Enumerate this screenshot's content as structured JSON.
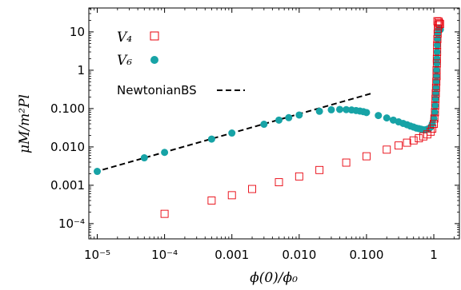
{
  "chart_data": {
    "type": "scatter",
    "xlabel": "ϕ(0)/ϕ₀",
    "ylabel": "μM/m²Pl",
    "xscale": "log",
    "yscale": "log",
    "xlim": [
      7.5e-06,
      2.4
    ],
    "ylim": [
      4e-05,
      42
    ],
    "x_ticks": [
      {
        "value": 1e-05,
        "label": "10⁻⁵"
      },
      {
        "value": 0.0001,
        "label": "10⁻⁴"
      },
      {
        "value": 0.001,
        "label": "0.001"
      },
      {
        "value": 0.01,
        "label": "0.010"
      },
      {
        "value": 0.1,
        "label": "0.100"
      },
      {
        "value": 1,
        "label": "1"
      }
    ],
    "y_ticks": [
      {
        "value": 0.0001,
        "label": "10⁻⁴"
      },
      {
        "value": 0.001,
        "label": "0.001"
      },
      {
        "value": 0.01,
        "label": "0.010"
      },
      {
        "value": 0.1,
        "label": "0.100"
      },
      {
        "value": 1,
        "label": "1"
      },
      {
        "value": 10,
        "label": "10"
      }
    ],
    "legend_position": "top-left",
    "series": [
      {
        "name": "V₄",
        "marker": "open-square",
        "color": "#e8000b",
        "points": [
          [
            0.0001,
            0.00018
          ],
          [
            0.0005,
            0.0004
          ],
          [
            0.001,
            0.00055
          ],
          [
            0.002,
            0.0008
          ],
          [
            0.005,
            0.0012
          ],
          [
            0.01,
            0.0017
          ],
          [
            0.02,
            0.0025
          ],
          [
            0.05,
            0.0039
          ],
          [
            0.1,
            0.0057
          ],
          [
            0.2,
            0.0085
          ],
          [
            0.3,
            0.0109
          ],
          [
            0.4,
            0.0129
          ],
          [
            0.5,
            0.0148
          ],
          [
            0.6,
            0.0168
          ],
          [
            0.7,
            0.0188
          ],
          [
            0.8,
            0.0212
          ],
          [
            0.9,
            0.025
          ],
          [
            0.95,
            0.03
          ],
          [
            1.0,
            0.04
          ],
          [
            1.02,
            0.055
          ],
          [
            1.04,
            0.08
          ],
          [
            1.05,
            0.12
          ],
          [
            1.06,
            0.18
          ],
          [
            1.07,
            0.25
          ],
          [
            1.08,
            0.35
          ],
          [
            1.09,
            0.5
          ],
          [
            1.1,
            0.7
          ],
          [
            1.1,
            1.0
          ],
          [
            1.11,
            1.5
          ],
          [
            1.11,
            2.0
          ],
          [
            1.12,
            3.0
          ],
          [
            1.12,
            4.5
          ],
          [
            1.13,
            6.5
          ],
          [
            1.14,
            9.0
          ],
          [
            1.15,
            12.0
          ],
          [
            1.17,
            15.0
          ],
          [
            1.2,
            17.0
          ],
          [
            1.13,
            19.0
          ],
          [
            1.18,
            18.5
          ],
          [
            1.24,
            16.0
          ]
        ]
      },
      {
        "name": "V₆",
        "marker": "filled-circle",
        "color": "#17a3a6",
        "points": [
          [
            1e-05,
            0.0023
          ],
          [
            5e-05,
            0.0052
          ],
          [
            0.0001,
            0.0072
          ],
          [
            0.0005,
            0.016
          ],
          [
            0.001,
            0.023
          ],
          [
            0.003,
            0.039
          ],
          [
            0.005,
            0.05
          ],
          [
            0.007,
            0.058
          ],
          [
            0.01,
            0.068
          ],
          [
            0.02,
            0.085
          ],
          [
            0.03,
            0.093
          ],
          [
            0.04,
            0.095
          ],
          [
            0.05,
            0.094
          ],
          [
            0.06,
            0.092
          ],
          [
            0.07,
            0.089
          ],
          [
            0.08,
            0.086
          ],
          [
            0.09,
            0.083
          ],
          [
            0.1,
            0.079
          ],
          [
            0.15,
            0.066
          ],
          [
            0.2,
            0.057
          ],
          [
            0.25,
            0.05
          ],
          [
            0.3,
            0.045
          ],
          [
            0.35,
            0.041
          ],
          [
            0.4,
            0.038
          ],
          [
            0.45,
            0.035
          ],
          [
            0.5,
            0.033
          ],
          [
            0.55,
            0.031
          ],
          [
            0.6,
            0.03
          ],
          [
            0.65,
            0.029
          ],
          [
            0.7,
            0.028
          ],
          [
            0.75,
            0.028
          ],
          [
            0.8,
            0.029
          ],
          [
            0.85,
            0.03
          ],
          [
            0.9,
            0.033
          ],
          [
            0.95,
            0.04
          ],
          [
            1.0,
            0.055
          ],
          [
            1.03,
            0.08
          ],
          [
            1.05,
            0.12
          ],
          [
            1.06,
            0.18
          ],
          [
            1.07,
            0.25
          ],
          [
            1.08,
            0.35
          ],
          [
            1.09,
            0.5
          ],
          [
            1.1,
            0.7
          ],
          [
            1.1,
            1.0
          ],
          [
            1.11,
            1.5
          ],
          [
            1.11,
            2.0
          ],
          [
            1.12,
            3.0
          ],
          [
            1.13,
            4.5
          ],
          [
            1.14,
            6.5
          ],
          [
            1.15,
            9.0
          ],
          [
            1.17,
            11.0
          ],
          [
            1.2,
            12.0
          ],
          [
            1.25,
            11.5
          ]
        ]
      },
      {
        "name": "NewtonianBS",
        "type": "dashed-line",
        "color": "#000000",
        "points": [
          [
            9e-06,
            0.0022
          ],
          [
            0.12,
            0.25
          ]
        ]
      }
    ]
  }
}
